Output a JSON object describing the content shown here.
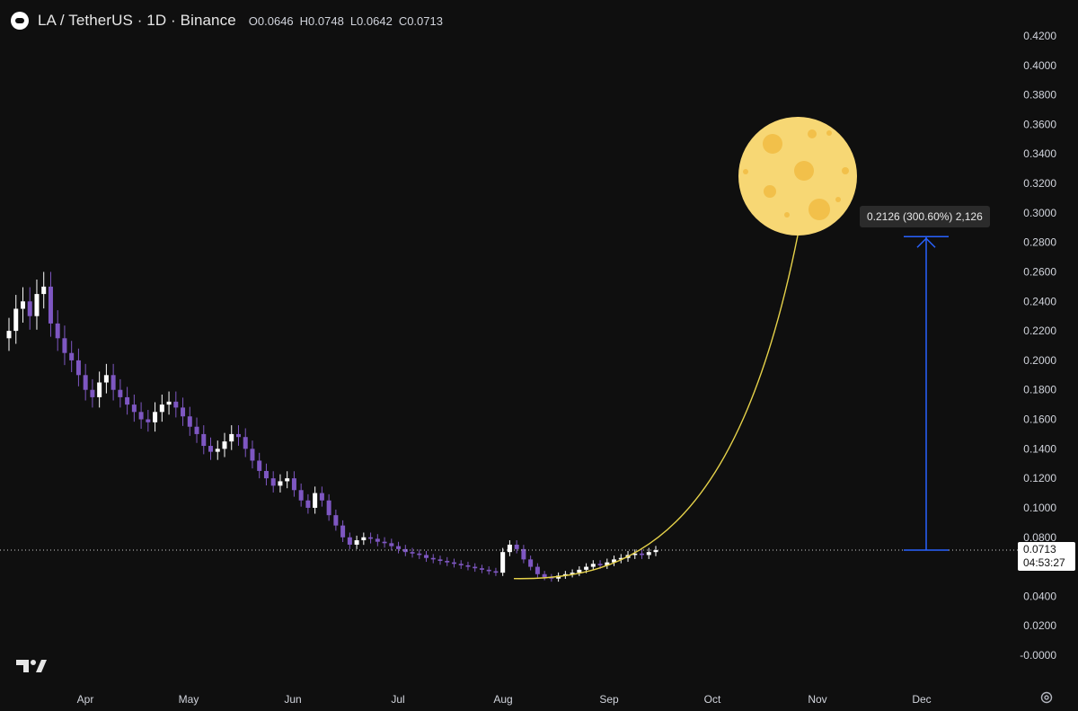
{
  "header": {
    "symbol_title": "LA / TetherUS · 1D · Binance",
    "ohlc": [
      {
        "key": "O",
        "value": "0.0646"
      },
      {
        "key": "H",
        "value": "0.0748"
      },
      {
        "key": "L",
        "value": "0.0642"
      },
      {
        "key": "C",
        "value": "0.0713"
      }
    ]
  },
  "price_tag": {
    "price": "0.0713",
    "countdown": "04:53:27"
  },
  "measure": {
    "label": "0.2126 (300.60%) 2,126"
  },
  "colors": {
    "background": "#0f0f0f",
    "candle_down": "#7e57c2",
    "candle_up": "#ffffff",
    "curve": "#e6d24a",
    "measure": "#2962ff",
    "moon": "#f7d774"
  },
  "chart_data": {
    "type": "candlestick",
    "ylim": [
      -0.0,
      0.42
    ],
    "y_ticks": [
      "0.4200",
      "0.4000",
      "0.3800",
      "0.3600",
      "0.3400",
      "0.3200",
      "0.3000",
      "0.2800",
      "0.2600",
      "0.2400",
      "0.2200",
      "0.2000",
      "0.1800",
      "0.1600",
      "0.1400",
      "0.1200",
      "0.1000",
      "0.0800",
      "0.0600",
      "0.0400",
      "0.0200",
      "-0.0000"
    ],
    "x_ticks": [
      "Apr",
      "May",
      "Jun",
      "Jul",
      "Aug",
      "Sep",
      "Oct",
      "Nov",
      "Dec"
    ],
    "close_series_approx": [
      0.22,
      0.235,
      0.24,
      0.23,
      0.245,
      0.25,
      0.225,
      0.215,
      0.205,
      0.2,
      0.19,
      0.18,
      0.175,
      0.185,
      0.19,
      0.18,
      0.175,
      0.17,
      0.165,
      0.16,
      0.158,
      0.165,
      0.17,
      0.172,
      0.168,
      0.162,
      0.155,
      0.15,
      0.142,
      0.138,
      0.14,
      0.145,
      0.15,
      0.148,
      0.14,
      0.132,
      0.125,
      0.12,
      0.115,
      0.118,
      0.12,
      0.112,
      0.105,
      0.1,
      0.11,
      0.105,
      0.095,
      0.088,
      0.08,
      0.075,
      0.078,
      0.08,
      0.079,
      0.077,
      0.076,
      0.074,
      0.072,
      0.07,
      0.069,
      0.068,
      0.066,
      0.065,
      0.064,
      0.063,
      0.062,
      0.061,
      0.06,
      0.059,
      0.058,
      0.057,
      0.056,
      0.07,
      0.075,
      0.072,
      0.065,
      0.06,
      0.055,
      0.053,
      0.052,
      0.054,
      0.055,
      0.056,
      0.058,
      0.06,
      0.062,
      0.061,
      0.063,
      0.065,
      0.066,
      0.068,
      0.069,
      0.068,
      0.07,
      0.0713
    ],
    "bottom_curve_y": 0.052,
    "target_price": 0.2839,
    "current_price": 0.0713
  }
}
